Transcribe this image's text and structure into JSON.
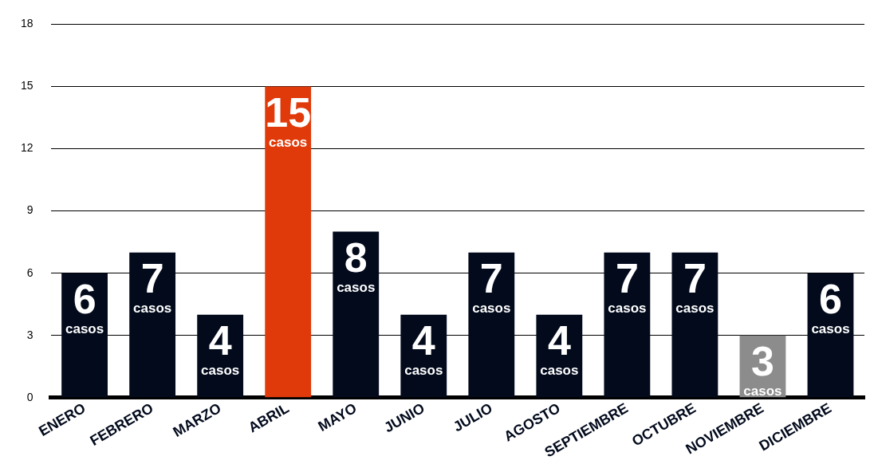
{
  "chart_data": {
    "type": "bar",
    "categories": [
      "ENERO",
      "FEBRERO",
      "MARZO",
      "ABRIL",
      "MAYO",
      "JUNIO",
      "JULIO",
      "AGOSTO",
      "SEPTIEMBRE",
      "OCTUBRE",
      "NOVIEMBRE",
      "DICIEMBRE"
    ],
    "values": [
      6,
      7,
      4,
      15,
      8,
      4,
      7,
      4,
      7,
      7,
      3,
      6
    ],
    "colors": [
      "#020a1c",
      "#020a1c",
      "#020a1c",
      "#e03a0a",
      "#020a1c",
      "#020a1c",
      "#020a1c",
      "#020a1c",
      "#020a1c",
      "#020a1c",
      "#8c8c8c",
      "#020a1c"
    ],
    "value_labels": [
      "6 casos",
      "7 casos",
      "4 casos",
      "15 casos",
      "8 casos",
      "4 casos",
      "7 casos",
      "4 casos",
      "7 casos",
      "7 casos",
      "3 casos",
      "6 casos"
    ],
    "ylim": [
      0,
      18
    ],
    "yticks": [
      0,
      3,
      6,
      9,
      12,
      15,
      18
    ],
    "grid": "y",
    "legend": false
  }
}
